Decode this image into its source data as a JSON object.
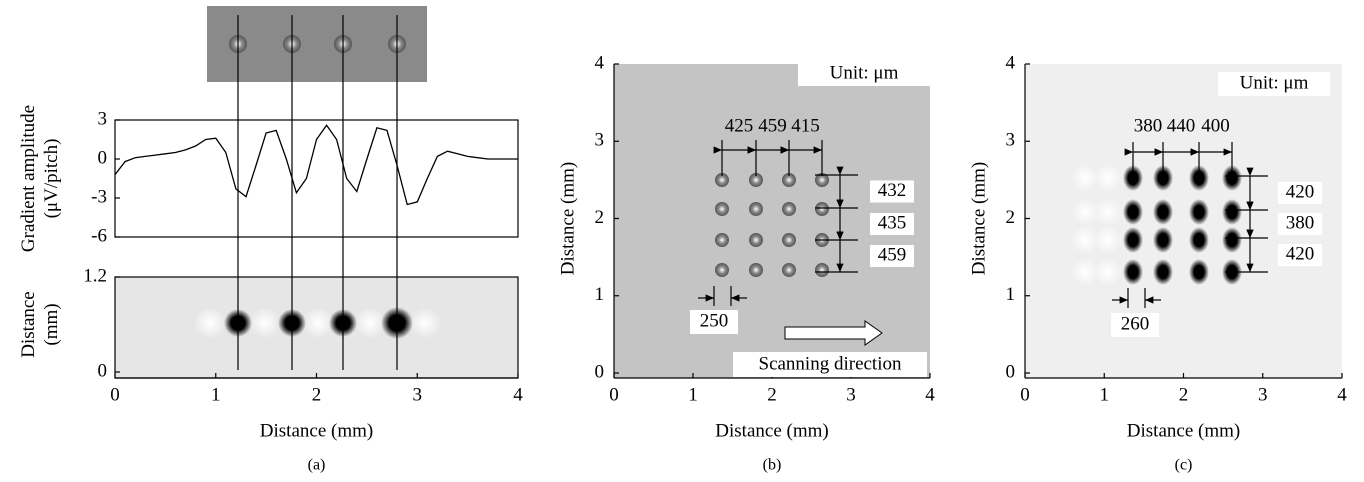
{
  "chart_data": [
    {
      "type": "line",
      "ylabel": [
        "Gradient amplitude",
        "(μV/pitch)"
      ],
      "xlim": [
        0,
        4
      ],
      "ylim": [
        -6,
        3
      ],
      "yticks": [
        3,
        0,
        -3,
        -6
      ],
      "x": [
        0,
        0.1,
        0.2,
        0.3,
        0.4,
        0.5,
        0.6,
        0.7,
        0.8,
        0.9,
        1.0,
        1.1,
        1.2,
        1.3,
        1.4,
        1.5,
        1.6,
        1.7,
        1.8,
        1.9,
        2.0,
        2.1,
        2.2,
        2.3,
        2.4,
        2.5,
        2.6,
        2.7,
        2.8,
        2.9,
        3.0,
        3.1,
        3.2,
        3.3,
        3.4,
        3.5,
        3.6,
        3.7,
        3.8,
        3.9,
        4.0
      ],
      "values": [
        -1.2,
        -0.2,
        0.1,
        0.2,
        0.3,
        0.4,
        0.5,
        0.7,
        1.0,
        1.5,
        1.6,
        0.5,
        -2.3,
        -2.9,
        -0.5,
        2.0,
        2.2,
        0,
        -2.6,
        -1.5,
        1.5,
        2.6,
        1.5,
        -1.5,
        -2.5,
        0,
        2.4,
        2.2,
        -0.5,
        -3.5,
        -3.3,
        -1.5,
        0.2,
        0.6,
        0.4,
        0.2,
        0.1,
        0,
        0,
        0,
        0
      ],
      "color": "#000000"
    },
    {
      "type": "image",
      "caption": "(a)",
      "ylabel": [
        "Distance",
        "(mm)"
      ],
      "xlabel": "Distance (mm)",
      "xlim": [
        0,
        4
      ],
      "xticks": [
        0,
        1,
        2,
        3,
        4
      ],
      "ylim": [
        0,
        1.2
      ],
      "yticks": [
        0,
        1.2
      ]
    },
    {
      "type": "image",
      "caption": "(b)",
      "ylabel": [
        "Distance (mm)"
      ],
      "xlabel": "Distance (mm)",
      "xlim": [
        0,
        4
      ],
      "xticks": [
        0,
        1,
        2,
        3,
        4
      ],
      "ylim": [
        0,
        4
      ],
      "yticks": [
        0,
        1,
        2,
        3,
        4
      ],
      "unit": "Unit: μm",
      "x_spacings": [
        425,
        459,
        415
      ],
      "y_spacings": [
        432,
        435,
        459
      ],
      "dot_size": 250,
      "arrow_label": "Scanning direction"
    },
    {
      "type": "image",
      "caption": "(c)",
      "ylabel": [
        "Distance (mm)"
      ],
      "xlabel": "Distance (mm)",
      "xlim": [
        0,
        4
      ],
      "xticks": [
        0,
        1,
        2,
        3,
        4
      ],
      "ylim": [
        0,
        4
      ],
      "yticks": [
        0,
        1,
        2,
        3,
        4
      ],
      "unit": "Unit: μm",
      "x_spacings": [
        380,
        440,
        400
      ],
      "y_spacings": [
        420,
        380,
        420
      ],
      "dot_size": 260
    }
  ]
}
